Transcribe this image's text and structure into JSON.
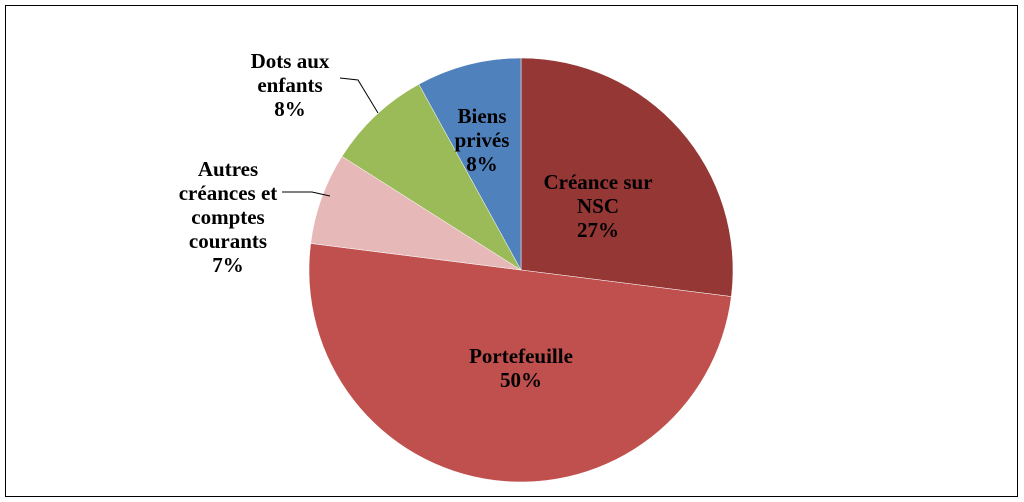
{
  "chart_data": {
    "type": "pie",
    "categories": [
      "Créance sur NSC",
      "Portefeuille",
      "Autres créances et comptes courants",
      "Dots aux enfants",
      "Biens privés"
    ],
    "values": [
      27,
      50,
      7,
      8,
      8
    ],
    "value_labels": [
      "27%",
      "50%",
      "7%",
      "8%",
      "8%"
    ],
    "colors": [
      "#953735",
      "#c0504d",
      "#e6b9b8",
      "#9bbb59",
      "#4f81bd"
    ]
  }
}
